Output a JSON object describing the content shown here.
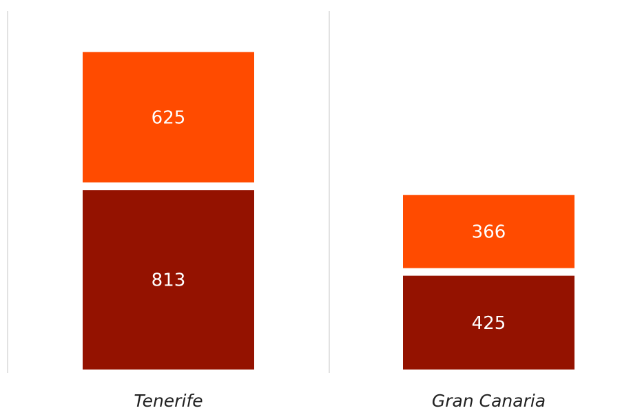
{
  "chart_data": {
    "type": "bar",
    "stacked": true,
    "categories": [
      "Tenerife",
      "Gran Canaria"
    ],
    "series": [
      {
        "values": [
          813,
          425
        ],
        "color": "#941200"
      },
      {
        "values": [
          625,
          366
        ],
        "color": "#ff4b00"
      }
    ],
    "data_labels": true,
    "gridlines": "vertical-separators",
    "title": "",
    "xlabel": "",
    "ylabel": "",
    "legend": "none"
  }
}
